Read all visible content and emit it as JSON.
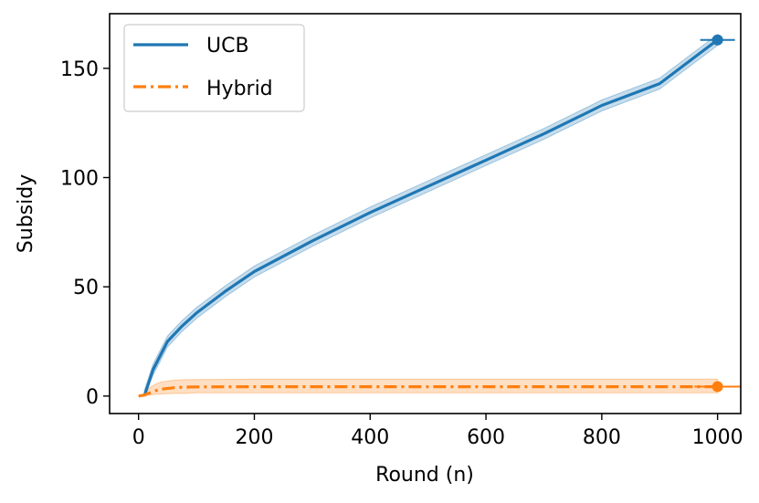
{
  "chart_data": {
    "type": "line",
    "title": "",
    "xlabel": "Round (n)",
    "ylabel": "Subsidy",
    "xlim": [
      -50,
      1040
    ],
    "ylim": [
      -8,
      175
    ],
    "xticks": [
      0,
      200,
      400,
      600,
      800,
      1000
    ],
    "yticks": [
      0,
      50,
      100,
      150
    ],
    "grid": false,
    "legend_position": "top-left",
    "series": [
      {
        "name": "UCB",
        "color": "#1f77b4",
        "linestyle": "solid",
        "x": [
          10,
          25,
          50,
          75,
          100,
          150,
          200,
          250,
          300,
          400,
          500,
          600,
          700,
          800,
          900,
          1000
        ],
        "y": [
          0,
          12,
          25,
          32,
          38,
          48,
          57,
          64,
          71,
          84,
          96,
          108,
          120,
          133,
          143,
          163
        ],
        "band_width": 2.5,
        "end_marker": {
          "x": 1000,
          "y": 163,
          "errorbar_halfwidth": 30
        }
      },
      {
        "name": "Hybrid",
        "color": "#ff7f0e",
        "linestyle": "dashdot",
        "x": [
          0,
          10,
          20,
          30,
          40,
          60,
          80,
          100,
          200,
          400,
          600,
          800,
          1000
        ],
        "y": [
          0,
          0.5,
          1.5,
          2.5,
          3.2,
          3.8,
          4.1,
          4.2,
          4.3,
          4.3,
          4.3,
          4.3,
          4.3
        ],
        "band_lower": [
          0,
          0.5,
          0.5,
          0.8,
          1.0,
          1.2,
          1.2,
          1.5,
          1.5,
          1.5,
          1.5,
          1.5,
          1.5
        ],
        "band_upper": [
          0,
          1.0,
          4.0,
          5.5,
          6.5,
          7.2,
          7.5,
          7.6,
          7.7,
          7.7,
          7.7,
          7.7,
          7.7
        ],
        "end_marker": {
          "x": 1000,
          "y": 4.3,
          "errorbar_halfwidth": 40
        }
      }
    ]
  }
}
